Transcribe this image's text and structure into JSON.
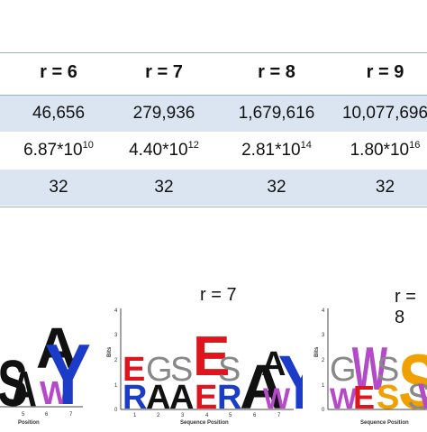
{
  "table": {
    "headers": [
      "r = 6",
      "r = 7",
      "r = 8",
      "r = 9"
    ],
    "rows": [
      {
        "cells": [
          "46,656",
          "279,936",
          "1,679,616",
          "10,077,696"
        ]
      },
      {
        "cells": [
          {
            "base": "6.87*10",
            "exp": "10"
          },
          {
            "base": "4.40*10",
            "exp": "12"
          },
          {
            "base": "2.81*10",
            "exp": "14"
          },
          {
            "base": "1.80*10",
            "exp": "16"
          }
        ]
      },
      {
        "cells": [
          "32",
          "32",
          "32",
          "32"
        ]
      }
    ]
  },
  "logos": {
    "middle": {
      "title": "r = 7",
      "ylabel": "Bits",
      "xlabel": "Sequence Position",
      "yticks": [
        "0",
        "1",
        "2",
        "3",
        "4"
      ],
      "xticks": [
        "1",
        "2",
        "3",
        "4",
        "5",
        "6",
        "7"
      ]
    },
    "left": {
      "xlabel": "Position",
      "xticks": [
        "5",
        "6",
        "7"
      ]
    },
    "right": {
      "title": "r = 8",
      "ylabel": "Bits",
      "xlabel": "Sequence Position",
      "yticks": [
        "0",
        "1",
        "2",
        "3",
        "4"
      ]
    }
  },
  "colors": {
    "black": "#111111",
    "red": "#e0141c",
    "blue": "#1a3cc8",
    "purple": "#b44ac8",
    "orange": "#f0a000",
    "header_line": "#9ab0cc",
    "row_shade": "#dbe5f1"
  }
}
